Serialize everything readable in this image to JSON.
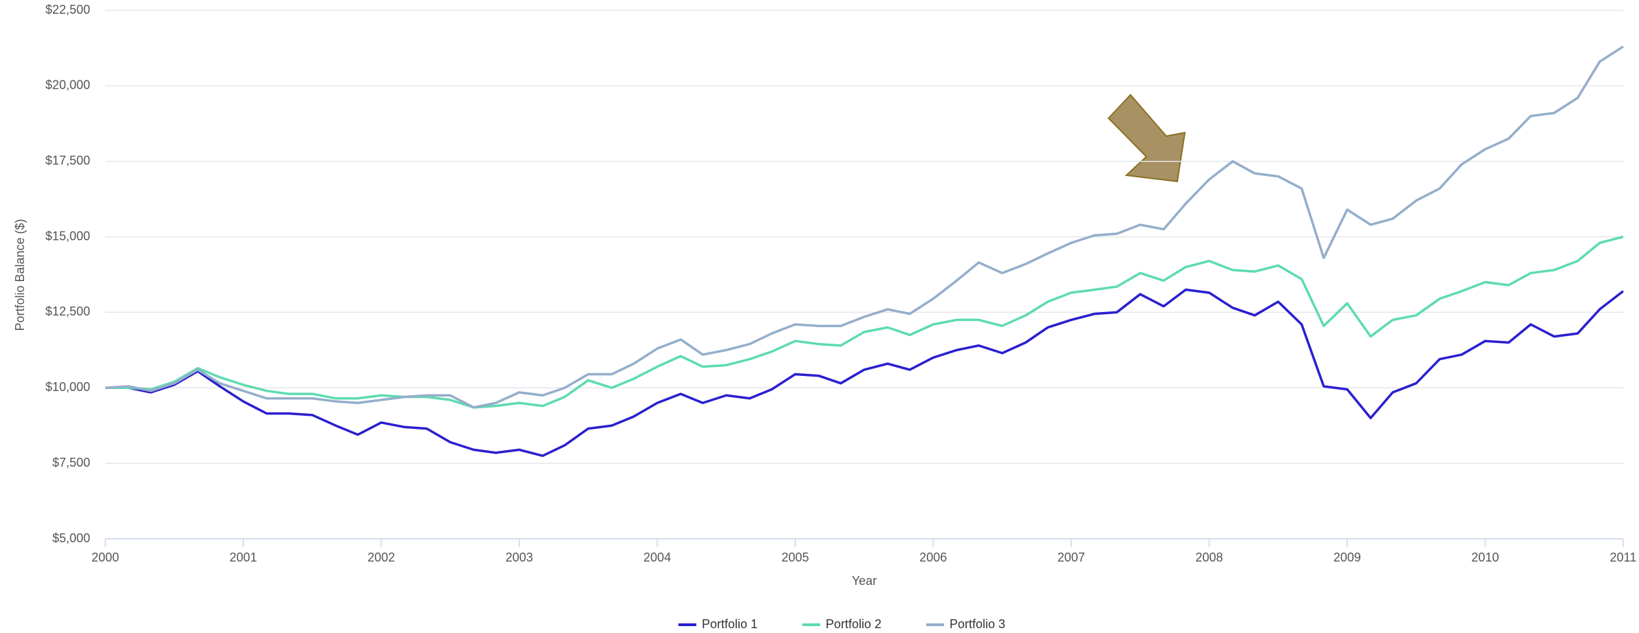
{
  "chart_data": {
    "type": "line",
    "x_label": "Year",
    "y_label": "Portfolio Balance ($)",
    "x": [
      2000,
      2000.17,
      2000.33,
      2000.5,
      2000.67,
      2000.83,
      2001,
      2001.17,
      2001.33,
      2001.5,
      2001.67,
      2001.83,
      2002,
      2002.17,
      2002.33,
      2002.5,
      2002.67,
      2002.83,
      2003,
      2003.17,
      2003.33,
      2003.5,
      2003.67,
      2003.83,
      2004,
      2004.17,
      2004.33,
      2004.5,
      2004.67,
      2004.83,
      2005,
      2005.17,
      2005.33,
      2005.5,
      2005.67,
      2005.83,
      2006,
      2006.17,
      2006.33,
      2006.5,
      2006.67,
      2006.83,
      2007,
      2007.17,
      2007.33,
      2007.5,
      2007.67,
      2007.83,
      2008,
      2008.17,
      2008.33,
      2008.5,
      2008.67,
      2008.83,
      2009,
      2009.17,
      2009.33,
      2009.5,
      2009.67,
      2009.83,
      2010,
      2010.17,
      2010.33,
      2010.5,
      2010.67,
      2010.83,
      2011
    ],
    "series": [
      {
        "name": "Portfolio 1",
        "color": "#2a1fcf",
        "values": [
          10000,
          10000,
          9850,
          10100,
          10550,
          10050,
          9550,
          9150,
          9150,
          9100,
          8750,
          8450,
          8850,
          8700,
          8650,
          8200,
          7950,
          7850,
          7950,
          7750,
          8100,
          8650,
          8750,
          9050,
          9500,
          9800,
          9500,
          9750,
          9650,
          9950,
          10450,
          10400,
          10150,
          10600,
          10800,
          10600,
          11000,
          11250,
          11400,
          11150,
          11500,
          12000,
          12250,
          12450,
          12500,
          13100,
          12700,
          13250,
          13150,
          12650,
          12400,
          12850,
          12100,
          10050,
          9950,
          9000,
          9850,
          10150,
          10950,
          11100,
          11550,
          11500,
          12100,
          11700,
          11800,
          12600,
          13200
        ]
      },
      {
        "name": "Portfolio 2",
        "color": "#5ddbb0",
        "values": [
          10000,
          10000,
          9950,
          10200,
          10650,
          10350,
          10100,
          9900,
          9800,
          9800,
          9650,
          9650,
          9750,
          9700,
          9700,
          9600,
          9350,
          9400,
          9500,
          9400,
          9700,
          10250,
          10000,
          10300,
          10700,
          11050,
          10700,
          10750,
          10950,
          11200,
          11550,
          11450,
          11400,
          11850,
          12000,
          11750,
          12100,
          12250,
          12250,
          12050,
          12400,
          12850,
          13150,
          13250,
          13350,
          13800,
          13550,
          14000,
          14200,
          13900,
          13850,
          14050,
          13600,
          12050,
          12800,
          11700,
          12250,
          12400,
          12950,
          13200,
          13500,
          13400,
          13800,
          13900,
          14200,
          14800,
          15000
        ]
      },
      {
        "name": "Portfolio 3",
        "color": "#94aecb",
        "values": [
          10000,
          10050,
          9900,
          10150,
          10600,
          10150,
          9900,
          9650,
          9650,
          9650,
          9550,
          9500,
          9600,
          9700,
          9750,
          9750,
          9350,
          9500,
          9850,
          9750,
          10000,
          10450,
          10450,
          10800,
          11300,
          11600,
          11100,
          11250,
          11450,
          11800,
          12100,
          12050,
          12050,
          12350,
          12600,
          12450,
          12950,
          13550,
          14150,
          13800,
          14100,
          14450,
          14800,
          15050,
          15100,
          15400,
          15250,
          16100,
          16900,
          17500,
          17100,
          17000,
          16600,
          14300,
          15900,
          15400,
          15600,
          16200,
          16600,
          17400,
          17900,
          18250,
          19000,
          19100,
          19600,
          20800,
          21300
        ]
      }
    ],
    "xlim": [
      2000,
      2011
    ],
    "xticks": [
      2000,
      2001,
      2002,
      2003,
      2004,
      2005,
      2006,
      2007,
      2008,
      2009,
      2010,
      2011
    ],
    "ylim": [
      5000,
      22500
    ],
    "yticks": [
      {
        "value": 5000,
        "label": "$5,000"
      },
      {
        "value": 7500,
        "label": "$7,500"
      },
      {
        "value": 10000,
        "label": "$10,000"
      },
      {
        "value": 12500,
        "label": "$12,500"
      },
      {
        "value": 15000,
        "label": "$15,000"
      },
      {
        "value": 17500,
        "label": "$17,500"
      },
      {
        "value": 20000,
        "label": "$20,000"
      },
      {
        "value": 22500,
        "label": "$22,500"
      }
    ],
    "grid": true,
    "legend": "bottom"
  }
}
